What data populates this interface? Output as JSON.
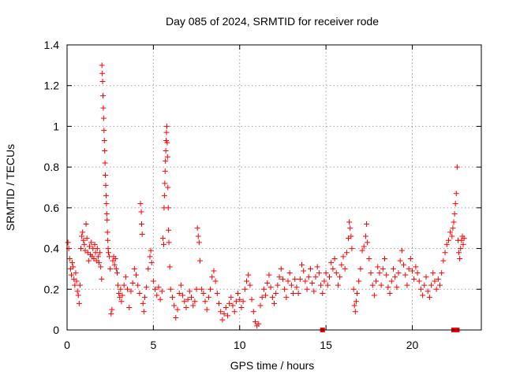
{
  "chart_data": {
    "type": "scatter",
    "title": "Day 085 of 2024, SRMTID for receiver rode",
    "xlabel": "GPS time / hours",
    "ylabel": "SRMTID / TECUs",
    "xlim": [
      0,
      24
    ],
    "ylim": [
      0,
      1.4
    ],
    "xticks": [
      0,
      5,
      10,
      15,
      20
    ],
    "xtick_labels": [
      "0",
      "5",
      "10",
      "15",
      "20"
    ],
    "yticks": [
      0,
      0.2,
      0.4,
      0.6,
      0.8,
      1.0,
      1.2,
      1.4
    ],
    "ytick_labels": [
      "0",
      "0.2",
      "0.4",
      "0.6",
      "0.8",
      "1",
      "1.2",
      "1.4"
    ],
    "grid": true,
    "marker": "+",
    "color": "#ff0000",
    "series": [
      {
        "name": "SRMTID",
        "points": [
          [
            0.05,
            0.43
          ],
          [
            0.1,
            0.4
          ],
          [
            0.15,
            0.35
          ],
          [
            0.2,
            0.3
          ],
          [
            0.25,
            0.27
          ],
          [
            0.3,
            0.33
          ],
          [
            0.35,
            0.31
          ],
          [
            0.4,
            0.25
          ],
          [
            0.45,
            0.22
          ],
          [
            0.5,
            0.28
          ],
          [
            0.55,
            0.24
          ],
          [
            0.6,
            0.19
          ],
          [
            0.65,
            0.17
          ],
          [
            0.7,
            0.13
          ],
          [
            0.75,
            0.22
          ],
          [
            0.8,
            0.4
          ],
          [
            0.85,
            0.46
          ],
          [
            0.9,
            0.48
          ],
          [
            0.95,
            0.44
          ],
          [
            1.0,
            0.42
          ],
          [
            1.05,
            0.39
          ],
          [
            1.1,
            0.52
          ],
          [
            1.15,
            0.45
          ],
          [
            1.2,
            0.38
          ],
          [
            1.25,
            0.34
          ],
          [
            1.3,
            0.41
          ],
          [
            1.35,
            0.37
          ],
          [
            1.4,
            0.43
          ],
          [
            1.45,
            0.36
          ],
          [
            1.5,
            0.4
          ],
          [
            1.55,
            0.35
          ],
          [
            1.6,
            0.42
          ],
          [
            1.65,
            0.38
          ],
          [
            1.7,
            0.34
          ],
          [
            1.75,
            0.4
          ],
          [
            1.8,
            0.36
          ],
          [
            1.85,
            0.33
          ],
          [
            1.9,
            0.38
          ],
          [
            1.95,
            0.31
          ],
          [
            2.0,
            0.25
          ],
          [
            2.02,
            1.3
          ],
          [
            2.04,
            1.26
          ],
          [
            2.06,
            1.22
          ],
          [
            2.08,
            1.15
          ],
          [
            2.1,
            1.09
          ],
          [
            2.12,
            1.04
          ],
          [
            2.14,
            0.98
          ],
          [
            2.16,
            0.93
          ],
          [
            2.18,
            0.88
          ],
          [
            2.2,
            0.82
          ],
          [
            2.22,
            0.76
          ],
          [
            2.24,
            0.71
          ],
          [
            2.26,
            0.66
          ],
          [
            2.28,
            0.62
          ],
          [
            2.3,
            0.57
          ],
          [
            2.32,
            0.54
          ],
          [
            2.34,
            0.48
          ],
          [
            2.36,
            0.44
          ],
          [
            2.38,
            0.4
          ],
          [
            2.4,
            0.38
          ],
          [
            2.45,
            0.36
          ],
          [
            2.5,
            0.3
          ],
          [
            2.55,
            0.08
          ],
          [
            2.6,
            0.1
          ],
          [
            2.65,
            0.34
          ],
          [
            2.7,
            0.36
          ],
          [
            2.75,
            0.32
          ],
          [
            2.8,
            0.35
          ],
          [
            2.85,
            0.3
          ],
          [
            2.9,
            0.28
          ],
          [
            2.95,
            0.22
          ],
          [
            3.0,
            0.18
          ],
          [
            3.05,
            0.16
          ],
          [
            3.1,
            0.2
          ],
          [
            3.15,
            0.14
          ],
          [
            3.2,
            0.17
          ],
          [
            3.3,
            0.22
          ],
          [
            3.4,
            0.26
          ],
          [
            3.5,
            0.2
          ],
          [
            3.6,
            0.11
          ],
          [
            3.7,
            0.19
          ],
          [
            3.8,
            0.23
          ],
          [
            3.9,
            0.3
          ],
          [
            4.0,
            0.27
          ],
          [
            4.1,
            0.22
          ],
          [
            4.2,
            0.18
          ],
          [
            4.25,
            0.62
          ],
          [
            4.3,
            0.58
          ],
          [
            4.32,
            0.52
          ],
          [
            4.35,
            0.47
          ],
          [
            4.4,
            0.13
          ],
          [
            4.45,
            0.09
          ],
          [
            4.5,
            0.16
          ],
          [
            4.6,
            0.21
          ],
          [
            4.7,
            0.3
          ],
          [
            4.8,
            0.36
          ],
          [
            4.85,
            0.39
          ],
          [
            4.9,
            0.33
          ],
          [
            5.0,
            0.24
          ],
          [
            5.1,
            0.2
          ],
          [
            5.2,
            0.17
          ],
          [
            5.3,
            0.21
          ],
          [
            5.4,
            0.15
          ],
          [
            5.5,
            0.19
          ],
          [
            5.55,
            0.45
          ],
          [
            5.6,
            0.42
          ],
          [
            5.62,
            0.6
          ],
          [
            5.64,
            0.66
          ],
          [
            5.66,
            0.72
          ],
          [
            5.68,
            0.78
          ],
          [
            5.7,
            0.83
          ],
          [
            5.72,
            0.88
          ],
          [
            5.74,
            0.93
          ],
          [
            5.76,
            0.97
          ],
          [
            5.78,
            1.0
          ],
          [
            5.8,
            0.92
          ],
          [
            5.82,
            0.85
          ],
          [
            5.84,
            0.7
          ],
          [
            5.86,
            0.6
          ],
          [
            5.88,
            0.49
          ],
          [
            5.9,
            0.43
          ],
          [
            5.95,
            0.31
          ],
          [
            6.0,
            0.2
          ],
          [
            6.1,
            0.16
          ],
          [
            6.2,
            0.12
          ],
          [
            6.3,
            0.06
          ],
          [
            6.4,
            0.1
          ],
          [
            6.5,
            0.18
          ],
          [
            6.6,
            0.22
          ],
          [
            6.7,
            0.17
          ],
          [
            6.8,
            0.14
          ],
          [
            6.9,
            0.11
          ],
          [
            7.0,
            0.15
          ],
          [
            7.1,
            0.19
          ],
          [
            7.2,
            0.16
          ],
          [
            7.3,
            0.12
          ],
          [
            7.4,
            0.14
          ],
          [
            7.5,
            0.2
          ],
          [
            7.55,
            0.5
          ],
          [
            7.6,
            0.46
          ],
          [
            7.65,
            0.43
          ],
          [
            7.7,
            0.34
          ],
          [
            7.8,
            0.2
          ],
          [
            7.9,
            0.18
          ],
          [
            8.0,
            0.14
          ],
          [
            8.1,
            0.1
          ],
          [
            8.2,
            0.16
          ],
          [
            8.3,
            0.2
          ],
          [
            8.4,
            0.26
          ],
          [
            8.5,
            0.29
          ],
          [
            8.6,
            0.24
          ],
          [
            8.7,
            0.18
          ],
          [
            8.8,
            0.13
          ],
          [
            8.9,
            0.09
          ],
          [
            9.0,
            0.05
          ],
          [
            9.1,
            0.08
          ],
          [
            9.2,
            0.11
          ],
          [
            9.3,
            0.07
          ],
          [
            9.4,
            0.13
          ],
          [
            9.5,
            0.16
          ],
          [
            9.6,
            0.12
          ],
          [
            9.7,
            0.09
          ],
          [
            9.8,
            0.14
          ],
          [
            9.9,
            0.18
          ],
          [
            10.0,
            0.15
          ],
          [
            10.1,
            0.11
          ],
          [
            10.2,
            0.14
          ],
          [
            10.3,
            0.2
          ],
          [
            10.4,
            0.24
          ],
          [
            10.5,
            0.27
          ],
          [
            10.6,
            0.22
          ],
          [
            10.7,
            0.15
          ],
          [
            10.8,
            0.09
          ],
          [
            10.9,
            0.04
          ],
          [
            11.0,
            0.02
          ],
          [
            11.1,
            0.03
          ],
          [
            11.2,
            0.12
          ],
          [
            11.3,
            0.16
          ],
          [
            11.4,
            0.2
          ],
          [
            11.5,
            0.17
          ],
          [
            11.6,
            0.23
          ],
          [
            11.7,
            0.27
          ],
          [
            11.8,
            0.21
          ],
          [
            11.9,
            0.16
          ],
          [
            12.0,
            0.13
          ],
          [
            12.1,
            0.18
          ],
          [
            12.2,
            0.22
          ],
          [
            12.3,
            0.26
          ],
          [
            12.4,
            0.3
          ],
          [
            12.5,
            0.25
          ],
          [
            12.6,
            0.2
          ],
          [
            12.7,
            0.16
          ],
          [
            12.8,
            0.24
          ],
          [
            12.9,
            0.28
          ],
          [
            13.0,
            0.22
          ],
          [
            13.1,
            0.18
          ],
          [
            13.2,
            0.25
          ],
          [
            13.3,
            0.21
          ],
          [
            13.4,
            0.18
          ],
          [
            13.5,
            0.25
          ],
          [
            13.6,
            0.32
          ],
          [
            13.7,
            0.29
          ],
          [
            13.8,
            0.24
          ],
          [
            13.9,
            0.2
          ],
          [
            14.0,
            0.26
          ],
          [
            14.1,
            0.3
          ],
          [
            14.2,
            0.23
          ],
          [
            14.3,
            0.19
          ],
          [
            14.4,
            0.26
          ],
          [
            14.5,
            0.31
          ],
          [
            14.6,
            0.28
          ],
          [
            14.7,
            0.22
          ],
          [
            14.8,
            0.18
          ],
          [
            14.9,
            0.24
          ],
          [
            15.0,
            0.28
          ],
          [
            15.1,
            0.22
          ],
          [
            15.2,
            0.26
          ],
          [
            15.3,
            0.33
          ],
          [
            15.4,
            0.3
          ],
          [
            15.5,
            0.35
          ],
          [
            15.6,
            0.28
          ],
          [
            15.7,
            0.22
          ],
          [
            15.8,
            0.26
          ],
          [
            15.9,
            0.32
          ],
          [
            16.0,
            0.36
          ],
          [
            16.1,
            0.3
          ],
          [
            16.2,
            0.38
          ],
          [
            16.3,
            0.45
          ],
          [
            16.35,
            0.53
          ],
          [
            16.4,
            0.5
          ],
          [
            16.45,
            0.46
          ],
          [
            16.5,
            0.4
          ],
          [
            16.6,
            0.2
          ],
          [
            16.65,
            0.12
          ],
          [
            16.7,
            0.09
          ],
          [
            16.75,
            0.14
          ],
          [
            16.8,
            0.18
          ],
          [
            16.9,
            0.24
          ],
          [
            17.0,
            0.3
          ],
          [
            17.1,
            0.39
          ],
          [
            17.2,
            0.41
          ],
          [
            17.3,
            0.46
          ],
          [
            17.35,
            0.52
          ],
          [
            17.4,
            0.43
          ],
          [
            17.5,
            0.35
          ],
          [
            17.6,
            0.28
          ],
          [
            17.7,
            0.22
          ],
          [
            17.8,
            0.17
          ],
          [
            17.9,
            0.24
          ],
          [
            18.0,
            0.31
          ],
          [
            18.1,
            0.28
          ],
          [
            18.2,
            0.22
          ],
          [
            18.3,
            0.3
          ],
          [
            18.4,
            0.35
          ],
          [
            18.5,
            0.27
          ],
          [
            18.6,
            0.21
          ],
          [
            18.7,
            0.18
          ],
          [
            18.8,
            0.24
          ],
          [
            18.9,
            0.3
          ],
          [
            19.0,
            0.26
          ],
          [
            19.1,
            0.21
          ],
          [
            19.2,
            0.28
          ],
          [
            19.3,
            0.34
          ],
          [
            19.4,
            0.39
          ],
          [
            19.5,
            0.32
          ],
          [
            19.6,
            0.27
          ],
          [
            19.7,
            0.22
          ],
          [
            19.8,
            0.3
          ],
          [
            19.9,
            0.35
          ],
          [
            20.0,
            0.29
          ],
          [
            20.1,
            0.25
          ],
          [
            20.2,
            0.31
          ],
          [
            20.3,
            0.28
          ],
          [
            20.4,
            0.24
          ],
          [
            20.5,
            0.2
          ],
          [
            20.6,
            0.17
          ],
          [
            20.7,
            0.22
          ],
          [
            20.8,
            0.26
          ],
          [
            20.9,
            0.19
          ],
          [
            21.0,
            0.16
          ],
          [
            21.1,
            0.22
          ],
          [
            21.2,
            0.28
          ],
          [
            21.3,
            0.24
          ],
          [
            21.4,
            0.2
          ],
          [
            21.5,
            0.25
          ],
          [
            21.6,
            0.22
          ],
          [
            21.7,
            0.28
          ],
          [
            21.8,
            0.34
          ],
          [
            21.9,
            0.38
          ],
          [
            22.0,
            0.42
          ],
          [
            22.1,
            0.44
          ],
          [
            22.2,
            0.48
          ],
          [
            22.3,
            0.46
          ],
          [
            22.35,
            0.5
          ],
          [
            22.4,
            0.53
          ],
          [
            22.45,
            0.57
          ],
          [
            22.5,
            0.62
          ],
          [
            22.55,
            0.67
          ],
          [
            22.6,
            0.8
          ],
          [
            22.65,
            0.44
          ],
          [
            22.7,
            0.38
          ],
          [
            22.75,
            0.35
          ],
          [
            22.8,
            0.4
          ],
          [
            22.85,
            0.44
          ],
          [
            22.9,
            0.46
          ],
          [
            22.95,
            0.42
          ],
          [
            23.0,
            0.45
          ]
        ]
      }
    ],
    "zero_markers": [
      14.8,
      22.4,
      22.6
    ]
  }
}
